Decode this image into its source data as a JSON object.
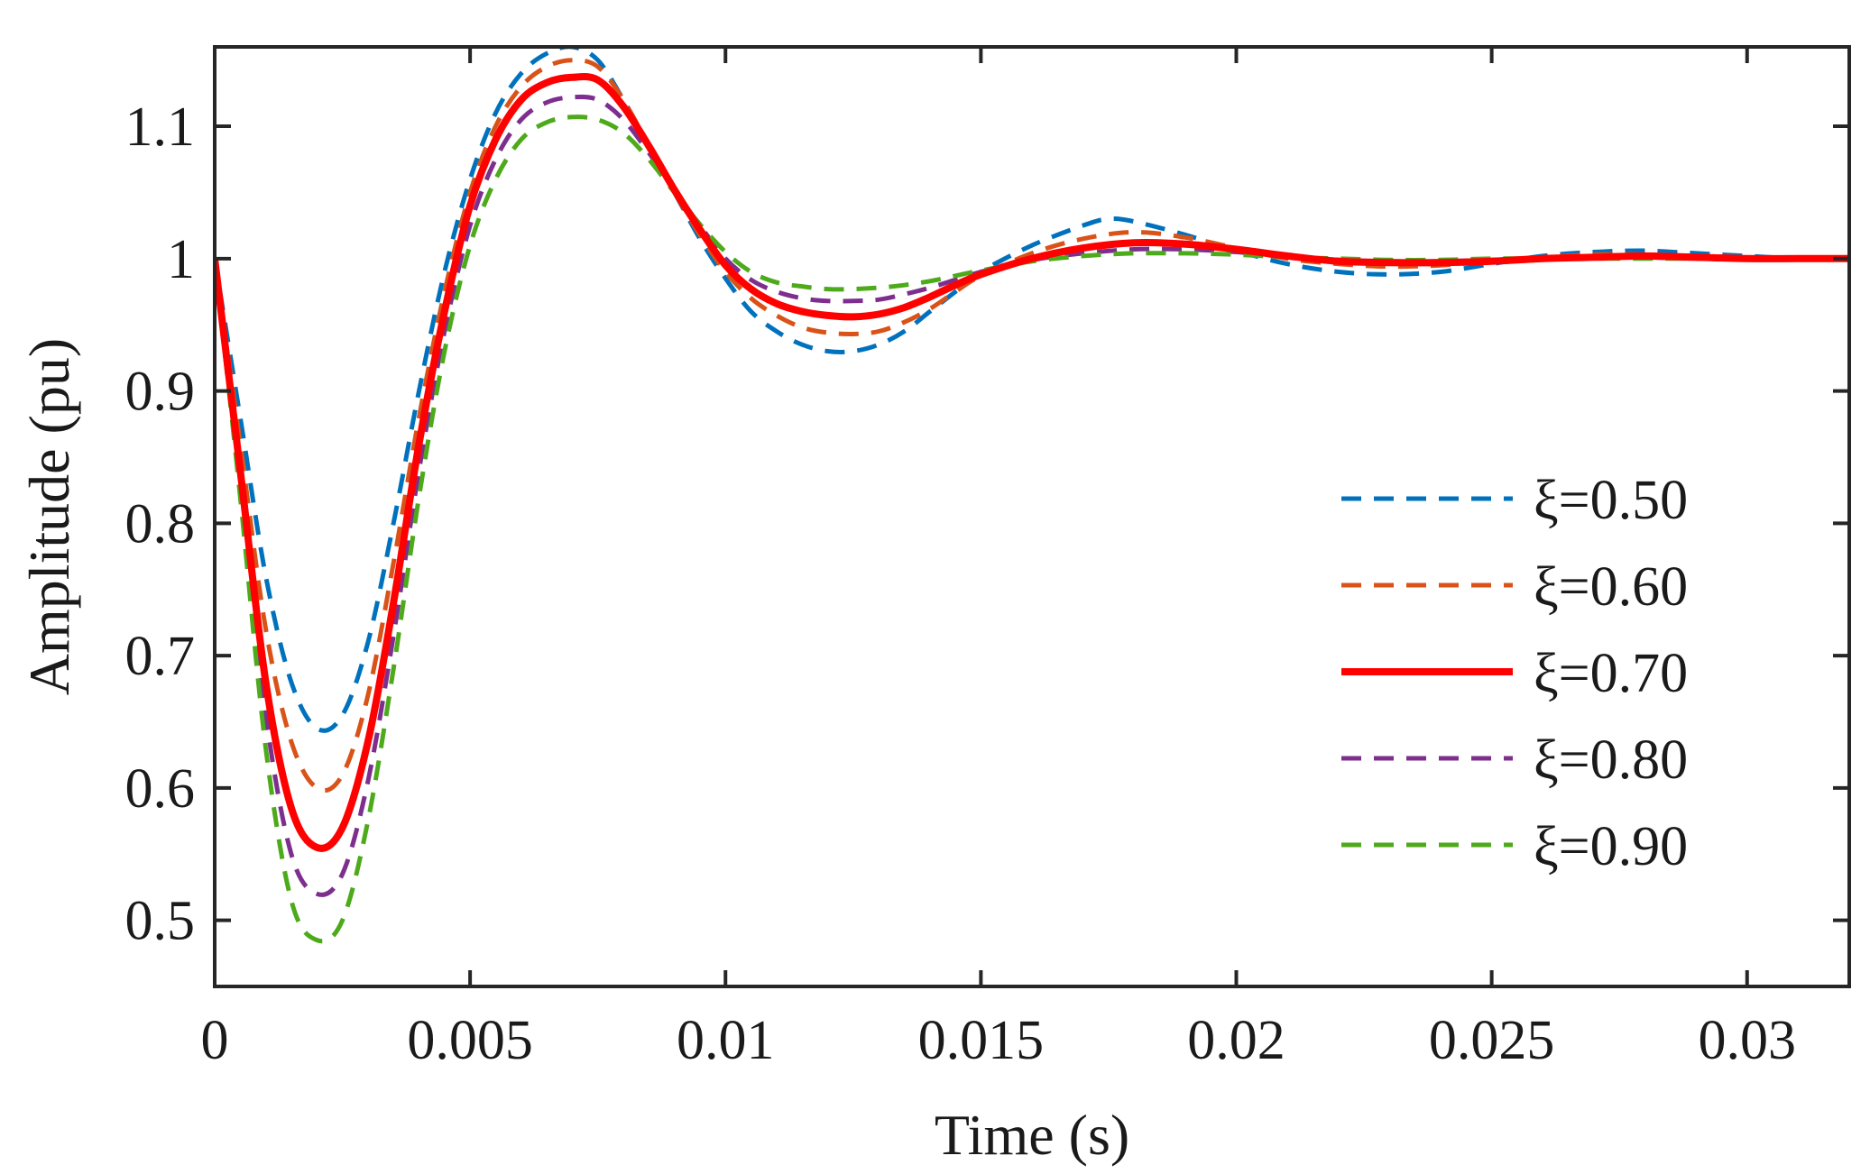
{
  "chart_data": {
    "type": "line",
    "xlabel": "Time (s)",
    "ylabel": "Amplitude (pu)",
    "xlim": [
      0,
      0.032
    ],
    "ylim": [
      0.45,
      1.16
    ],
    "xticks": [
      0,
      0.005,
      0.01,
      0.015,
      0.02,
      0.025,
      0.03
    ],
    "xtick_labels": [
      "0",
      "0.005",
      "0.01",
      "0.015",
      "0.02",
      "0.025",
      "0.03"
    ],
    "yticks": [
      0.5,
      0.6,
      0.7,
      0.8,
      0.9,
      1.0,
      1.1
    ],
    "ytick_labels": [
      "0.5",
      "0.6",
      "0.7",
      "0.8",
      "0.9",
      "1",
      "1.1"
    ],
    "grid": false,
    "legend_position": "right",
    "series": [
      {
        "name": "ξ=0.50",
        "color": "#0072BD",
        "dash": "dashed",
        "x": [
          0,
          0.0005,
          0.001,
          0.0015,
          0.002,
          0.0025,
          0.003,
          0.0035,
          0.004,
          0.0045,
          0.005,
          0.0055,
          0.006,
          0.0065,
          0.007,
          0.0075,
          0.008,
          0.0085,
          0.009,
          0.0095,
          0.01,
          0.0105,
          0.011,
          0.0115,
          0.012,
          0.0125,
          0.013,
          0.0135,
          0.014,
          0.0145,
          0.015,
          0.016,
          0.017,
          0.0175,
          0.018,
          0.019,
          0.02,
          0.021,
          0.022,
          0.023,
          0.024,
          0.025,
          0.026,
          0.027,
          0.028,
          0.029,
          0.03,
          0.031,
          0.032
        ],
        "values": [
          1.0,
          0.88,
          0.76,
          0.68,
          0.645,
          0.655,
          0.71,
          0.8,
          0.9,
          0.99,
          1.06,
          1.11,
          1.14,
          1.155,
          1.16,
          1.15,
          1.12,
          1.085,
          1.05,
          1.015,
          0.985,
          0.96,
          0.945,
          0.935,
          0.93,
          0.93,
          0.935,
          0.945,
          0.96,
          0.975,
          0.99,
          1.01,
          1.025,
          1.03,
          1.028,
          1.018,
          1.006,
          0.996,
          0.99,
          0.988,
          0.99,
          0.996,
          1.002,
          1.005,
          1.006,
          1.004,
          1.002,
          1.0,
          1.0
        ]
      },
      {
        "name": "ξ=0.60",
        "color": "#D95319",
        "dash": "dashed",
        "x": [
          0,
          0.0005,
          0.001,
          0.0015,
          0.002,
          0.0025,
          0.003,
          0.0035,
          0.004,
          0.0045,
          0.005,
          0.0055,
          0.006,
          0.0065,
          0.007,
          0.0075,
          0.008,
          0.0085,
          0.009,
          0.0095,
          0.01,
          0.0105,
          0.011,
          0.0115,
          0.012,
          0.0125,
          0.013,
          0.0135,
          0.014,
          0.0145,
          0.015,
          0.016,
          0.017,
          0.018,
          0.019,
          0.02,
          0.021,
          0.022,
          0.023,
          0.024,
          0.025,
          0.026,
          0.027,
          0.028,
          0.029,
          0.03,
          0.031,
          0.032
        ],
        "values": [
          1.0,
          0.86,
          0.72,
          0.635,
          0.6,
          0.61,
          0.67,
          0.77,
          0.88,
          0.975,
          1.05,
          1.1,
          1.13,
          1.145,
          1.15,
          1.145,
          1.12,
          1.085,
          1.05,
          1.018,
          0.99,
          0.97,
          0.957,
          0.948,
          0.944,
          0.943,
          0.945,
          0.952,
          0.962,
          0.975,
          0.987,
          1.004,
          1.015,
          1.02,
          1.016,
          1.008,
          1.0,
          0.996,
          0.994,
          0.995,
          0.998,
          1.001,
          1.003,
          1.003,
          1.002,
          1.001,
          1.0,
          1.0
        ]
      },
      {
        "name": "ξ=0.70",
        "color": "#FF0000",
        "dash": "solid",
        "x": [
          0,
          0.0005,
          0.001,
          0.0015,
          0.002,
          0.0025,
          0.003,
          0.0035,
          0.004,
          0.0045,
          0.005,
          0.0055,
          0.006,
          0.0065,
          0.007,
          0.0075,
          0.008,
          0.0085,
          0.009,
          0.0095,
          0.01,
          0.0105,
          0.011,
          0.0115,
          0.012,
          0.0125,
          0.013,
          0.0135,
          0.014,
          0.0145,
          0.015,
          0.016,
          0.017,
          0.018,
          0.019,
          0.02,
          0.021,
          0.022,
          0.023,
          0.024,
          0.025,
          0.026,
          0.027,
          0.028,
          0.029,
          0.03,
          0.031,
          0.032
        ],
        "values": [
          1.0,
          0.84,
          0.68,
          0.585,
          0.555,
          0.57,
          0.635,
          0.74,
          0.86,
          0.96,
          1.04,
          1.09,
          1.12,
          1.133,
          1.137,
          1.135,
          1.115,
          1.085,
          1.052,
          1.022,
          0.995,
          0.977,
          0.966,
          0.96,
          0.957,
          0.956,
          0.958,
          0.963,
          0.971,
          0.98,
          0.988,
          1.0,
          1.008,
          1.012,
          1.011,
          1.007,
          1.002,
          0.998,
          0.997,
          0.997,
          0.998,
          1.0,
          1.001,
          1.002,
          1.001,
          1.0,
          1.0,
          1.0
        ]
      },
      {
        "name": "ξ=0.80",
        "color": "#7E2F8E",
        "dash": "dashed",
        "x": [
          0,
          0.0005,
          0.001,
          0.0015,
          0.002,
          0.0025,
          0.003,
          0.0035,
          0.004,
          0.0045,
          0.005,
          0.0055,
          0.006,
          0.0065,
          0.007,
          0.0075,
          0.008,
          0.0085,
          0.009,
          0.0095,
          0.01,
          0.0105,
          0.011,
          0.0115,
          0.012,
          0.0125,
          0.013,
          0.0135,
          0.014,
          0.0145,
          0.015,
          0.016,
          0.017,
          0.018,
          0.019,
          0.02,
          0.021,
          0.022,
          0.023,
          0.024,
          0.025,
          0.026,
          0.027,
          0.028,
          0.029,
          0.03,
          0.031,
          0.032
        ],
        "values": [
          1.0,
          0.83,
          0.655,
          0.55,
          0.52,
          0.535,
          0.605,
          0.715,
          0.84,
          0.945,
          1.025,
          1.075,
          1.105,
          1.118,
          1.122,
          1.12,
          1.105,
          1.08,
          1.052,
          1.025,
          1.0,
          0.984,
          0.975,
          0.97,
          0.968,
          0.968,
          0.969,
          0.973,
          0.978,
          0.984,
          0.99,
          0.999,
          1.004,
          1.007,
          1.007,
          1.005,
          1.002,
          0.999,
          0.998,
          0.998,
          0.999,
          1.0,
          1.001,
          1.001,
          1.0,
          1.0,
          1.0,
          1.0
        ]
      },
      {
        "name": "ξ=0.90",
        "color": "#4DAA1A",
        "dash": "dashed",
        "x": [
          0,
          0.0005,
          0.001,
          0.0015,
          0.002,
          0.0025,
          0.003,
          0.0035,
          0.004,
          0.0045,
          0.005,
          0.0055,
          0.006,
          0.0065,
          0.007,
          0.0075,
          0.008,
          0.0085,
          0.009,
          0.0095,
          0.01,
          0.0105,
          0.011,
          0.0115,
          0.012,
          0.0125,
          0.013,
          0.0135,
          0.014,
          0.0145,
          0.015,
          0.016,
          0.017,
          0.018,
          0.019,
          0.02,
          0.021,
          0.022,
          0.023,
          0.024,
          0.025,
          0.026,
          0.027,
          0.028,
          0.029,
          0.03,
          0.031,
          0.032
        ],
        "values": [
          1.0,
          0.82,
          0.63,
          0.515,
          0.485,
          0.5,
          0.575,
          0.69,
          0.82,
          0.93,
          1.01,
          1.06,
          1.09,
          1.103,
          1.107,
          1.105,
          1.095,
          1.075,
          1.05,
          1.026,
          1.005,
          0.99,
          0.982,
          0.979,
          0.977,
          0.977,
          0.978,
          0.98,
          0.983,
          0.987,
          0.991,
          0.998,
          1.002,
          1.004,
          1.004,
          1.003,
          1.001,
          1.0,
          0.999,
          0.999,
          1.0,
          1.0,
          1.0,
          1.0,
          1.0,
          1.0,
          1.0,
          1.0
        ]
      }
    ]
  }
}
